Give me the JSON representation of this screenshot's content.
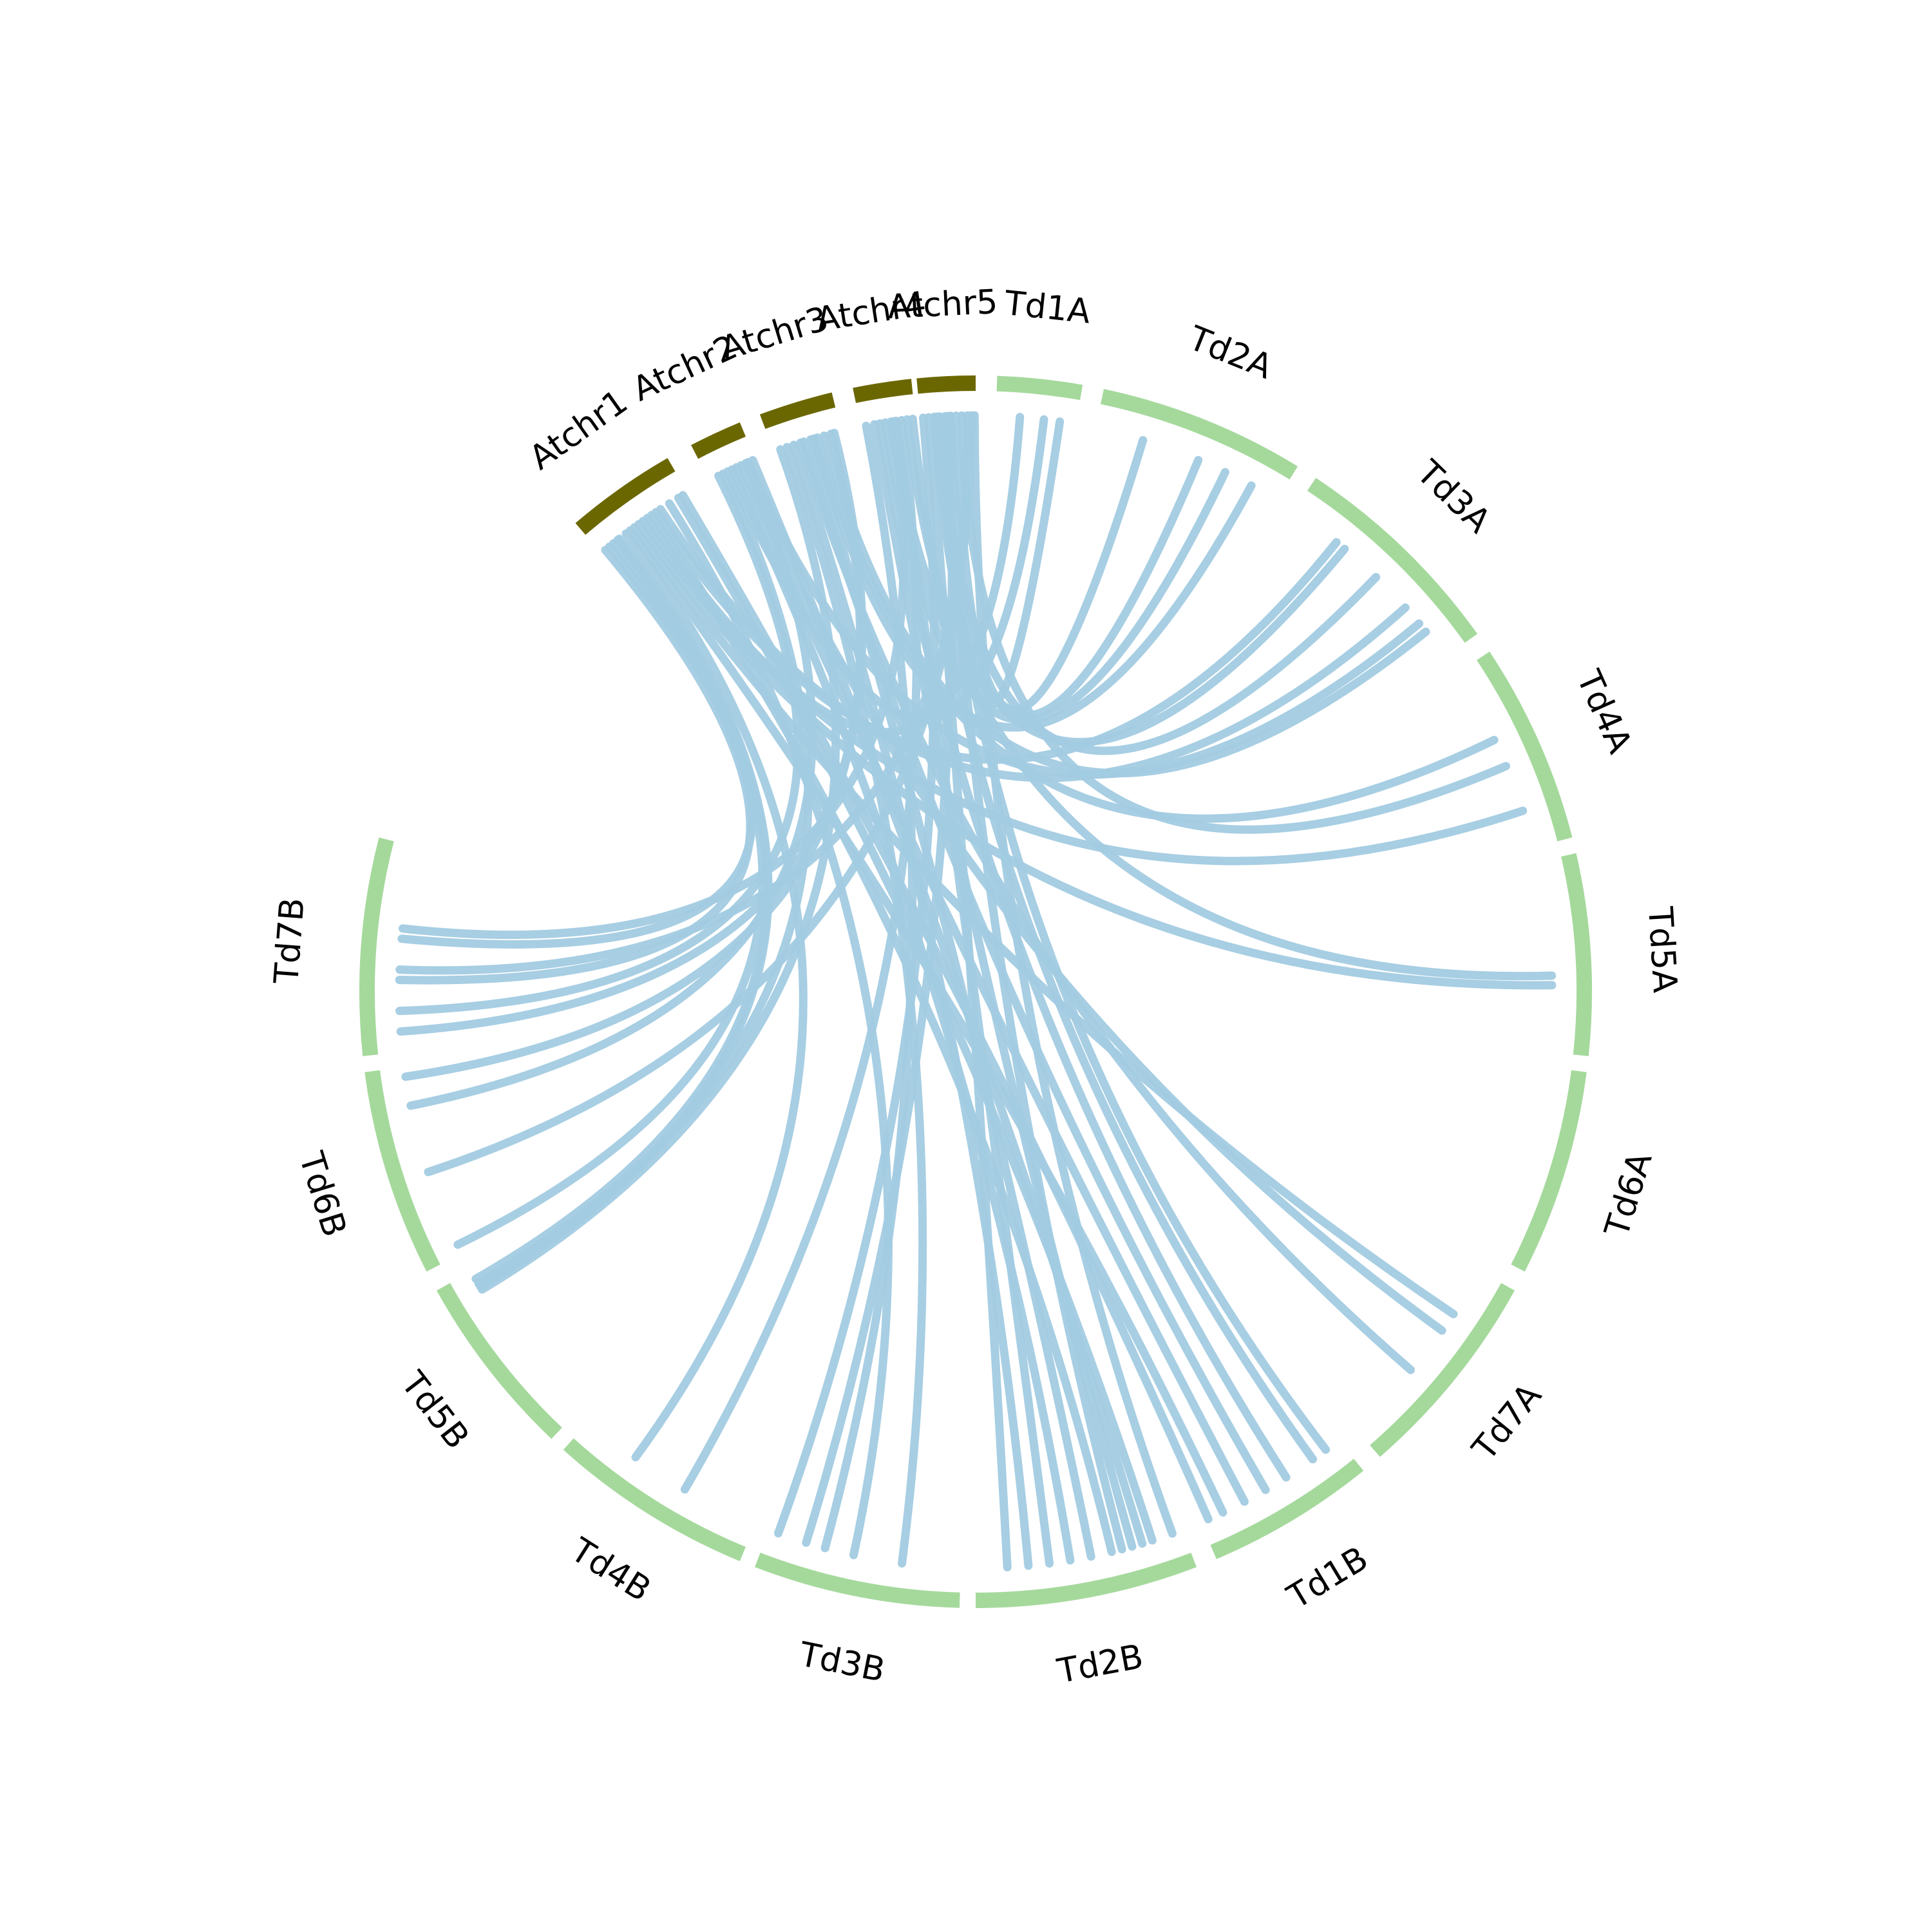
{
  "colors": {
    "at_chromosome": "#6b6700",
    "td_chromosome": "#a5d99c",
    "link": "#a2cbe1",
    "background": "#ffffff"
  },
  "chromosomes": [
    {
      "name": "Atchr1",
      "group": "at"
    },
    {
      "name": "Atchr2",
      "group": "at"
    },
    {
      "name": "Atchr3",
      "group": "at"
    },
    {
      "name": "Atchr4",
      "group": "at"
    },
    {
      "name": "Atchr5",
      "group": "at"
    },
    {
      "name": "Td1A",
      "group": "td"
    },
    {
      "name": "Td2A",
      "group": "td"
    },
    {
      "name": "Td3A",
      "group": "td"
    },
    {
      "name": "Td4A",
      "group": "td"
    },
    {
      "name": "Td5A",
      "group": "td"
    },
    {
      "name": "Td6A",
      "group": "td"
    },
    {
      "name": "Td7A",
      "group": "td"
    },
    {
      "name": "Td1B",
      "group": "td"
    },
    {
      "name": "Td2B",
      "group": "td"
    },
    {
      "name": "Td3B",
      "group": "td"
    },
    {
      "name": "Td4B",
      "group": "td"
    },
    {
      "name": "Td5B",
      "group": "td"
    },
    {
      "name": "Td6B",
      "group": "td"
    },
    {
      "name": "Td7B",
      "group": "td"
    }
  ]
}
